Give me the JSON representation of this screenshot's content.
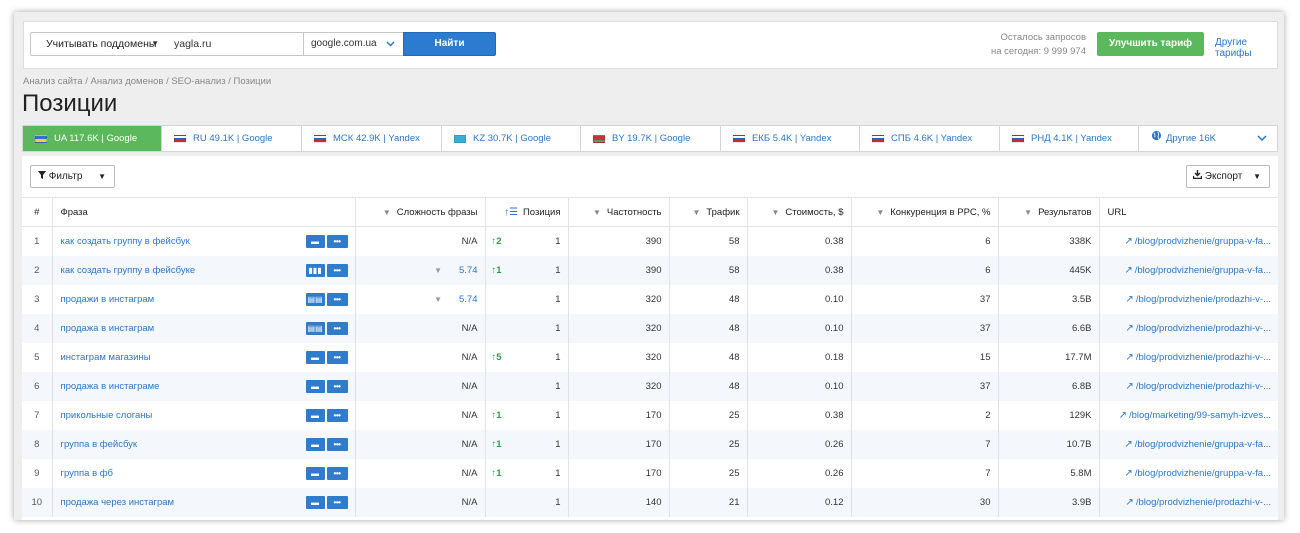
{
  "search": {
    "subdomain_select": "Учитывать поддомены",
    "domain_value": "yagla.ru",
    "engine_select": "google.com.ua",
    "find_label": "Найти",
    "quota_line1": "Осталось запросов",
    "quota_line2": "на сегодня: 9 999 974",
    "upgrade_label": "Улучшить тариф",
    "other_tariffs": "Другие тарифы"
  },
  "breadcrumb": "Анализ сайта / Анализ доменов / SEO-анализ / Позиции",
  "page_title": "Позиции",
  "tabs": [
    {
      "label": "UA 117.6K | Google",
      "flag": "ua"
    },
    {
      "label": "RU 49.1K | Google",
      "flag": "ru"
    },
    {
      "label": "МСК 42.9K | Yandex",
      "flag": "ru"
    },
    {
      "label": "KZ 30.7K | Google",
      "flag": "kz"
    },
    {
      "label": "BY 19.7K | Google",
      "flag": "by"
    },
    {
      "label": "ЕКБ 5.4K | Yandex",
      "flag": "ru"
    },
    {
      "label": "СПБ 4.6K | Yandex",
      "flag": "ru"
    },
    {
      "label": "РНД 4.1K | Yandex",
      "flag": "ru"
    },
    {
      "label": "Другие 16K",
      "flag": "globe"
    }
  ],
  "toolbar": {
    "filter_label": "Фильтр",
    "export_label": "Экспорт"
  },
  "columns": {
    "num": "#",
    "phrase": "Фраза",
    "difficulty": "Сложность фразы",
    "position": "Позиция",
    "frequency": "Частотность",
    "traffic": "Трафик",
    "cost": "Стоимость, $",
    "competition": "Конкуренция в PPC, %",
    "results": "Результатов",
    "url": "URL"
  },
  "rows": [
    {
      "n": "1",
      "phrase": "как создать группу в фейсбук",
      "diff": "N/A",
      "diff_link": false,
      "change": "↑2",
      "pos": "1",
      "freq": "390",
      "traffic": "58",
      "cost": "0.38",
      "comp": "6",
      "results": "338K",
      "url": "/blog/prodvizhenie/gruppa-v-fa..."
    },
    {
      "n": "2",
      "phrase": "как создать группу в фейсбуке",
      "diff": "5.74",
      "diff_link": true,
      "change": "↑1",
      "pos": "1",
      "freq": "390",
      "traffic": "58",
      "cost": "0.38",
      "comp": "6",
      "results": "445K",
      "url": "/blog/prodvizhenie/gruppa-v-fa..."
    },
    {
      "n": "3",
      "phrase": "продажи в инстаграм",
      "diff": "5.74",
      "diff_link": true,
      "change": "",
      "pos": "1",
      "freq": "320",
      "traffic": "48",
      "cost": "0.10",
      "comp": "37",
      "results": "3.5B",
      "url": "/blog/prodvizhenie/prodazhi-v-..."
    },
    {
      "n": "4",
      "phrase": "продажа в инстаграм",
      "diff": "N/A",
      "diff_link": false,
      "change": "",
      "pos": "1",
      "freq": "320",
      "traffic": "48",
      "cost": "0.10",
      "comp": "37",
      "results": "6.6B",
      "url": "/blog/prodvizhenie/prodazhi-v-..."
    },
    {
      "n": "5",
      "phrase": "инстаграм магазины",
      "diff": "N/A",
      "diff_link": false,
      "change": "↑5",
      "pos": "1",
      "freq": "320",
      "traffic": "48",
      "cost": "0.18",
      "comp": "15",
      "results": "17.7M",
      "url": "/blog/prodvizhenie/prodazhi-v-..."
    },
    {
      "n": "6",
      "phrase": "продажа в инстаграме",
      "diff": "N/A",
      "diff_link": false,
      "change": "",
      "pos": "1",
      "freq": "320",
      "traffic": "48",
      "cost": "0.10",
      "comp": "37",
      "results": "6.8B",
      "url": "/blog/prodvizhenie/prodazhi-v-..."
    },
    {
      "n": "7",
      "phrase": "прикольные слоганы",
      "diff": "N/A",
      "diff_link": false,
      "change": "↑1",
      "pos": "1",
      "freq": "170",
      "traffic": "25",
      "cost": "0.38",
      "comp": "2",
      "results": "129K",
      "url": "/blog/marketing/99-samyh-izves..."
    },
    {
      "n": "8",
      "phrase": "группа в фейсбук",
      "diff": "N/A",
      "diff_link": false,
      "change": "↑1",
      "pos": "1",
      "freq": "170",
      "traffic": "25",
      "cost": "0.26",
      "comp": "7",
      "results": "10.7B",
      "url": "/blog/prodvizhenie/gruppa-v-fa..."
    },
    {
      "n": "9",
      "phrase": "группа в фб",
      "diff": "N/A",
      "diff_link": false,
      "change": "↑1",
      "pos": "1",
      "freq": "170",
      "traffic": "25",
      "cost": "0.26",
      "comp": "7",
      "results": "5.8M",
      "url": "/blog/prodvizhenie/gruppa-v-fa..."
    },
    {
      "n": "10",
      "phrase": "продажа через инстаграм",
      "diff": "N/A",
      "diff_link": false,
      "change": "",
      "pos": "1",
      "freq": "140",
      "traffic": "21",
      "cost": "0.12",
      "comp": "30",
      "results": "3.9B",
      "url": "/blog/prodvizhenie/prodazhi-v-..."
    }
  ]
}
